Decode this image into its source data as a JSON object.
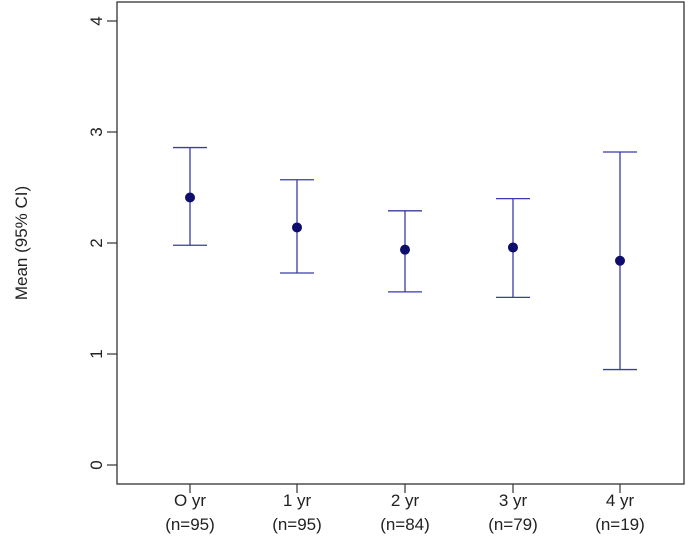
{
  "chart_data": {
    "type": "errorbar",
    "title": "",
    "xlabel": "",
    "ylabel": "Mean (95% CI)",
    "ylim": [
      0,
      4
    ],
    "yticks": [
      "0",
      "1",
      "2",
      "3",
      "4"
    ],
    "categories": [
      {
        "label": "O yr",
        "n": "(n=95)"
      },
      {
        "label": "1 yr",
        "n": "(n=95)"
      },
      {
        "label": "2 yr",
        "n": "(n=84)"
      },
      {
        "label": "3 yr",
        "n": "(n=79)"
      },
      {
        "label": "4 yr",
        "n": "(n=19)"
      }
    ],
    "mean": [
      2.41,
      2.14,
      1.94,
      1.96,
      1.84
    ],
    "lower": [
      1.98,
      1.73,
      1.56,
      1.51,
      0.86
    ],
    "upper": [
      2.86,
      2.57,
      2.29,
      2.4,
      2.82
    ],
    "grid": false,
    "colors": {
      "point": "#0d0d6b",
      "errorbar": "#3a3aa8"
    }
  }
}
